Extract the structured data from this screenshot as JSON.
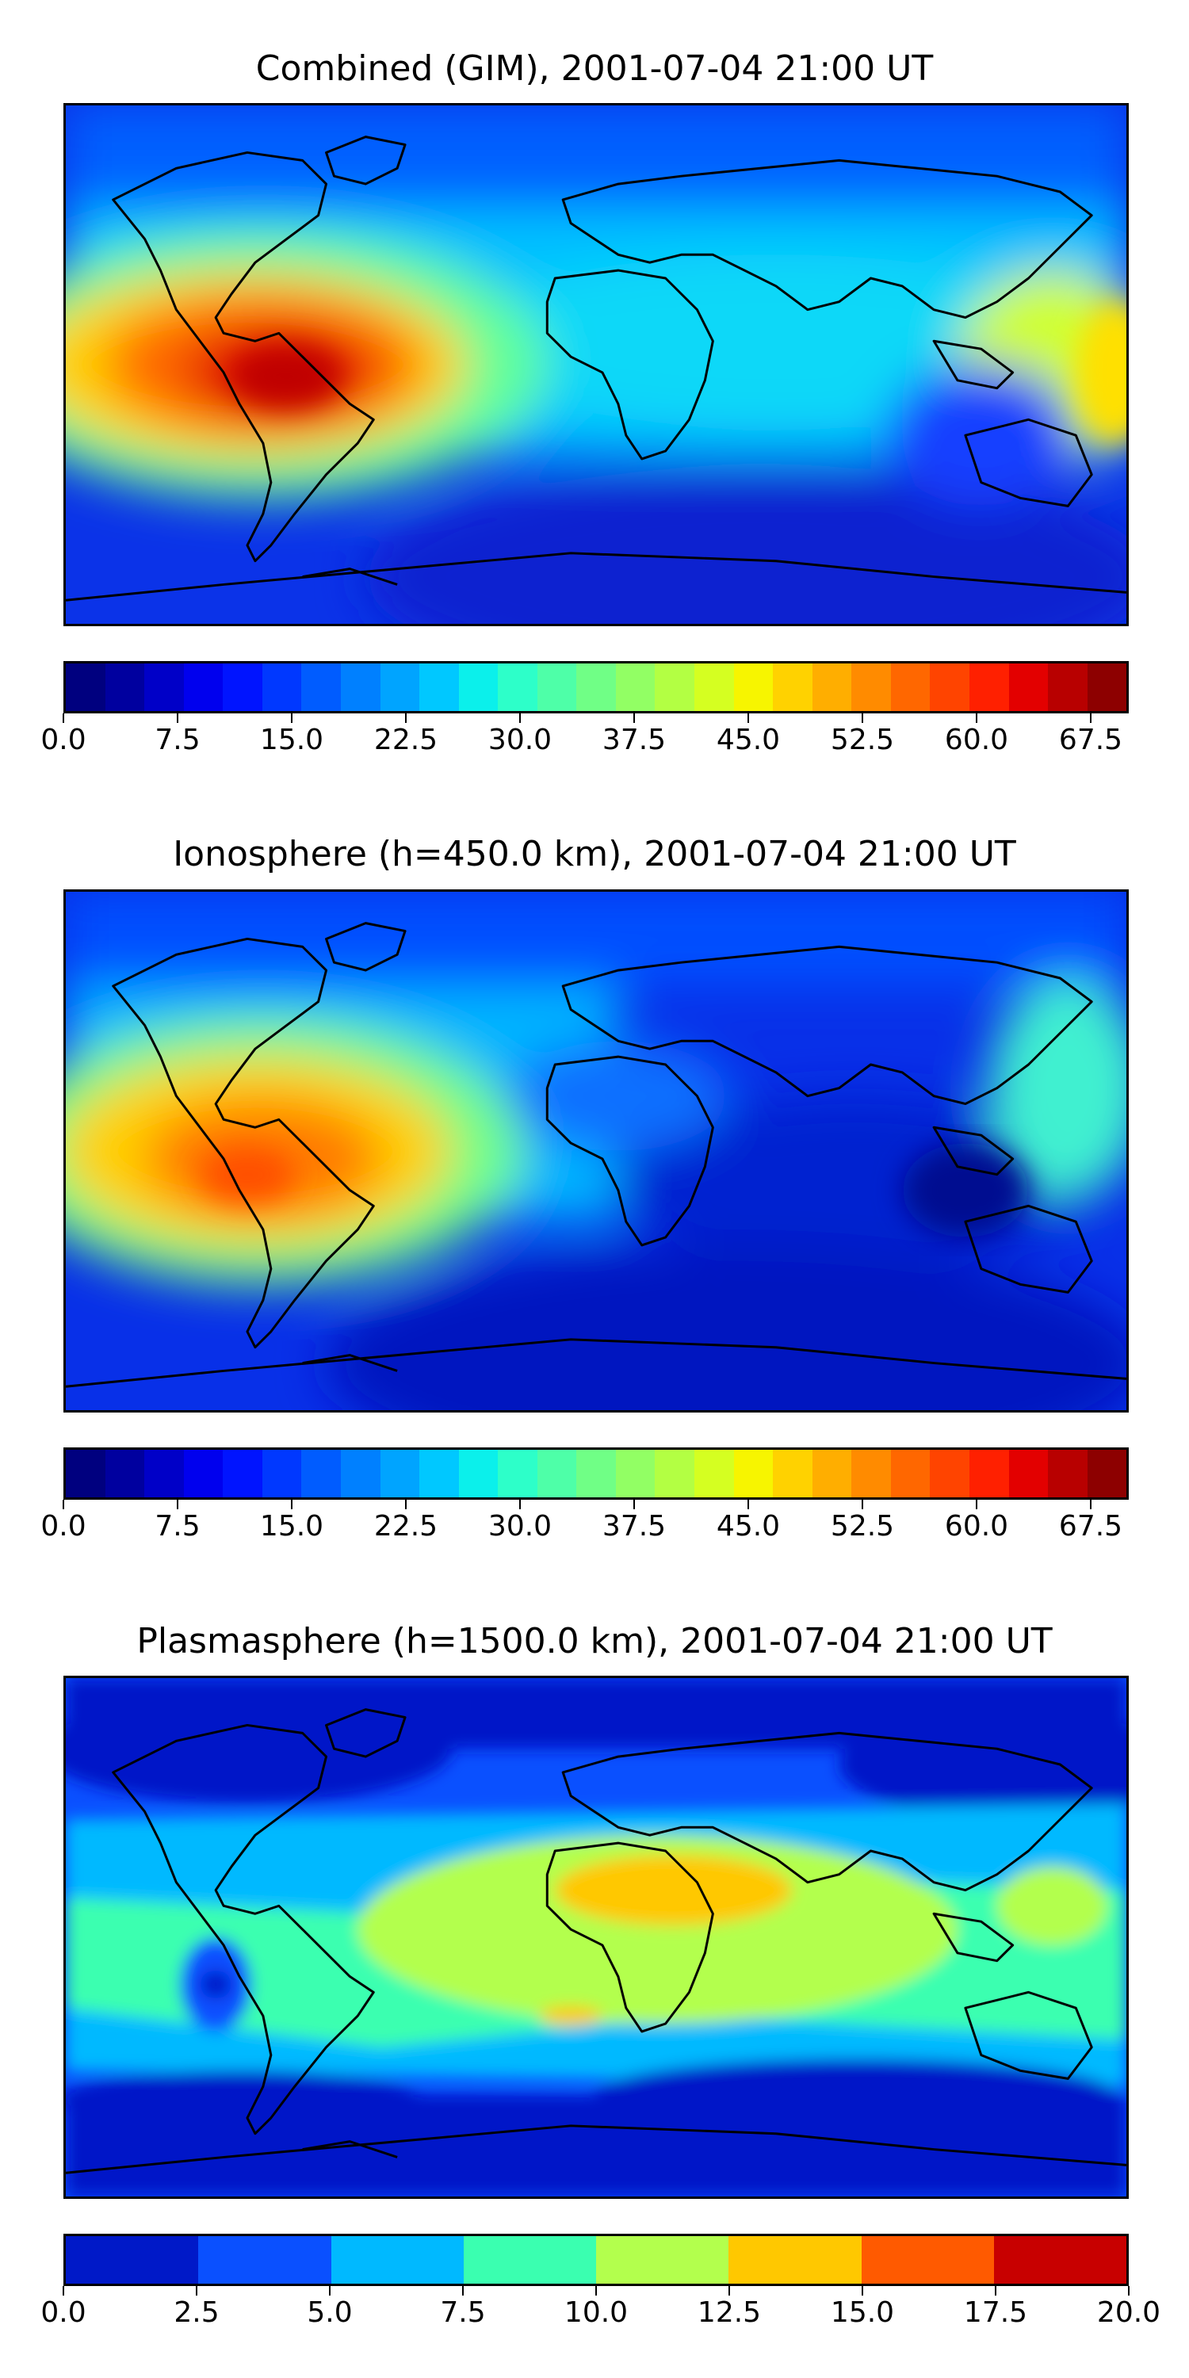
{
  "panels": [
    {
      "title": "Combined (GIM), 2001-07-04 21:00 UT",
      "colorbar": {
        "colors": [
          "#00007f",
          "#00009f",
          "#0000c8",
          "#0000ee",
          "#0014ff",
          "#0038ff",
          "#005cff",
          "#0080ff",
          "#00a4ff",
          "#00c8ff",
          "#0bf0eb",
          "#2dffc9",
          "#4effa8",
          "#70ff86",
          "#92ff64",
          "#b3ff43",
          "#d5ff21",
          "#f7f500",
          "#ffd200",
          "#ffae00",
          "#ff8b00",
          "#ff6700",
          "#ff4400",
          "#ff2000",
          "#e30000",
          "#b80000",
          "#8d0000"
        ],
        "ticks": [
          "0.0",
          "7.5",
          "15.0",
          "22.5",
          "30.0",
          "37.5",
          "45.0",
          "52.5",
          "60.0",
          "67.5"
        ],
        "range": [
          0,
          70
        ]
      }
    },
    {
      "title": "Ionosphere  (h=450.0 km), 2001-07-04 21:00 UT",
      "colorbar": {
        "colors": [
          "#00007f",
          "#00009f",
          "#0000c8",
          "#0000ee",
          "#0014ff",
          "#0038ff",
          "#005cff",
          "#0080ff",
          "#00a4ff",
          "#00c8ff",
          "#0bf0eb",
          "#2dffc9",
          "#4effa8",
          "#70ff86",
          "#92ff64",
          "#b3ff43",
          "#d5ff21",
          "#f7f500",
          "#ffd200",
          "#ffae00",
          "#ff8b00",
          "#ff6700",
          "#ff4400",
          "#ff2000",
          "#e30000",
          "#b80000",
          "#8d0000"
        ],
        "ticks": [
          "0.0",
          "7.5",
          "15.0",
          "22.5",
          "30.0",
          "37.5",
          "45.0",
          "52.5",
          "60.0",
          "67.5"
        ],
        "range": [
          0,
          70
        ]
      }
    },
    {
      "title": "Plasmasphere (h=1500.0 km), 2001-07-04 21:00 UT",
      "colorbar": {
        "colors": [
          "#0019c8",
          "#0a50ff",
          "#00b9ff",
          "#3affb0",
          "#b3ff4d",
          "#ffc800",
          "#ff5a00",
          "#c80000"
        ],
        "ticks": [
          "0.0",
          "2.5",
          "5.0",
          "7.5",
          "10.0",
          "12.5",
          "15.0",
          "17.5",
          "20.0"
        ],
        "range": [
          0,
          20
        ]
      }
    }
  ]
}
